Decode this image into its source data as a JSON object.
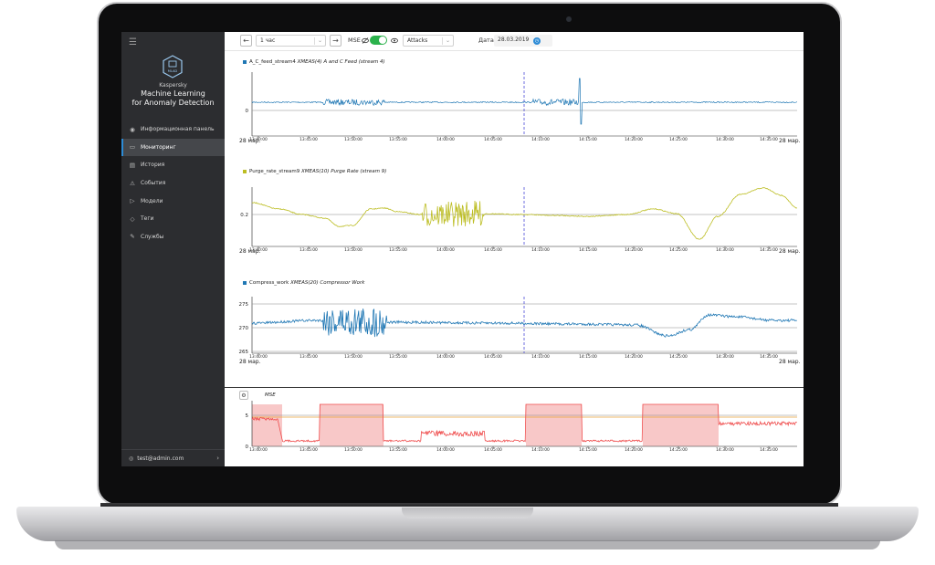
{
  "sidebar": {
    "brand_small": "Kaspersky",
    "brand_line1": "Machine Learning",
    "brand_line2": "for Anomaly Detection",
    "logo_text": "MLAD",
    "items": [
      {
        "label": "Информационная панель",
        "icon": "dashboard-icon",
        "glyph": "◉"
      },
      {
        "label": "Мониторинг",
        "icon": "monitor-icon",
        "glyph": "▭",
        "active": true
      },
      {
        "label": "История",
        "icon": "history-icon",
        "glyph": "▤"
      },
      {
        "label": "События",
        "icon": "warning-icon",
        "glyph": "⚠"
      },
      {
        "label": "Модели",
        "icon": "play-icon",
        "glyph": "▷"
      },
      {
        "label": "Теги",
        "icon": "tag-icon",
        "glyph": "◇"
      },
      {
        "label": "Службы",
        "icon": "wrench-icon",
        "glyph": "✎"
      }
    ],
    "user": "test@admin.com"
  },
  "toolbar": {
    "back": "←",
    "period": "1 час",
    "forward": "→",
    "mse_label": "MSE",
    "attacks": "Attacks",
    "date_label": "Дата",
    "date_value": "28.03.2019"
  },
  "colors": {
    "blue": "#1f77b4",
    "olive": "#bcbd22",
    "red": "#ef4b4b",
    "band": "#f8c8c8",
    "threshold": "#e8a33a",
    "event": "#4a4ad8"
  },
  "chart_data": [
    {
      "type": "line",
      "title_tag": "A_C_feed_stream4",
      "title_desc": "XMEAS(4) A and C Feed (stream 4)",
      "color": "#1f77b4",
      "yticks": [
        "0"
      ],
      "xticks": [
        "13:40:00",
        "13:45:00",
        "13:50:00",
        "13:55:00",
        "14:00:00",
        "14:05:00",
        "14:10:00",
        "14:15:00",
        "14:20:00",
        "14:25:00",
        "14:30:00",
        "14:35:00"
      ],
      "date_left": "28 мар.",
      "date_right": "28 мар."
    },
    {
      "type": "line",
      "title_tag": "Purge_rate_stream9",
      "title_desc": "XMEAS(10) Purge Rate (stream 9)",
      "color": "#bcbd22",
      "yticks": [
        "0.2"
      ],
      "xticks": [
        "13:40:00",
        "13:45:00",
        "13:50:00",
        "13:55:00",
        "14:00:00",
        "14:05:00",
        "14:10:00",
        "14:15:00",
        "14:20:00",
        "14:25:00",
        "14:30:00",
        "14:35:00"
      ],
      "date_left": "28 мар.",
      "date_right": "28 мар."
    },
    {
      "type": "line",
      "title_tag": "Compress_work",
      "title_desc": "XMEAS(20) Compressor Work",
      "color": "#1f77b4",
      "yticks": [
        "275",
        "270",
        "265"
      ],
      "xticks": [
        "13:40:00",
        "13:45:00",
        "13:50:00",
        "13:55:00",
        "14:00:00",
        "14:05:00",
        "14:10:00",
        "14:15:00",
        "14:20:00",
        "14:25:00",
        "14:30:00",
        "14:35:00"
      ],
      "date_left": "28 мар.",
      "date_right": "28 мар."
    },
    {
      "type": "area",
      "title": "MSE",
      "color": "#ef4b4b",
      "yticks": [
        "5",
        "0"
      ],
      "xticks": [
        "13:40:00",
        "13:45:00",
        "13:50:00",
        "13:55:00",
        "14:00:00",
        "14:05:00",
        "14:10:00",
        "14:15:00",
        "14:20:00",
        "14:25:00",
        "14:30:00",
        "14:35:00"
      ]
    }
  ]
}
